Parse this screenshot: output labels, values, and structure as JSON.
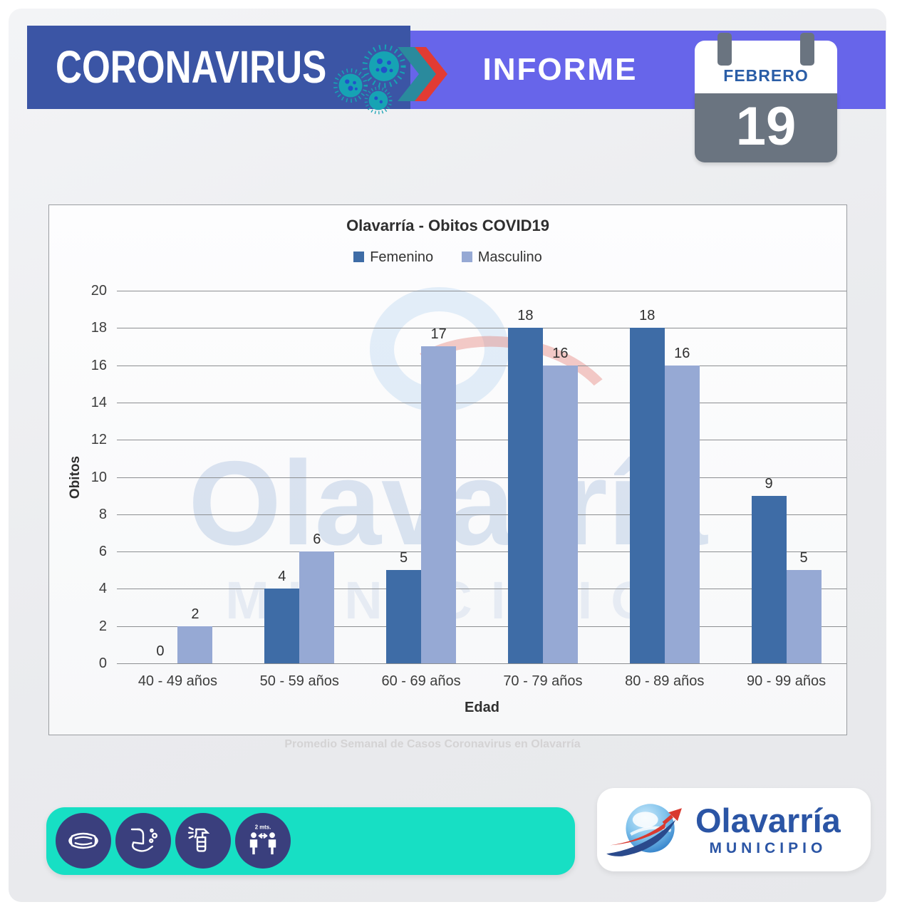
{
  "header": {
    "title": "CORONAVIRUS",
    "report_label": "INFORME",
    "calendar": {
      "month": "FEBRERO",
      "day": "19"
    }
  },
  "chart_data": {
    "type": "bar",
    "title": "Olavarría - Obitos COVID19",
    "categories": [
      "40 - 49 años",
      "50 - 59 años",
      "60 - 69 años",
      "70 - 79 años",
      "80 - 89 años",
      "90 - 99 años"
    ],
    "series": [
      {
        "name": "Femenino",
        "color": "#3E6CA6",
        "values": [
          0,
          4,
          5,
          18,
          18,
          9
        ]
      },
      {
        "name": "Masculino",
        "color": "#96A9D4",
        "values": [
          2,
          6,
          17,
          16,
          16,
          5
        ]
      }
    ],
    "xlabel": "Edad",
    "ylabel": "Obitos",
    "ylim": [
      0,
      20
    ],
    "ytick_step": 2,
    "grid": true,
    "legend_position": "top"
  },
  "watermark": {
    "text": "Olavarría",
    "subtext": "MUNICIPIO"
  },
  "ghost_text": "Promedio Semanal de Casos Coronavirus en Olavarría",
  "footer": {
    "icons": [
      "face-mask",
      "hand-washing",
      "disinfectant-spray",
      "social-distancing"
    ],
    "distance_label": "2 mts.",
    "logo": {
      "name": "Olavarría",
      "subtitle": "MUNICIPIO"
    }
  },
  "colors": {
    "header_dark_band": "#3B55A5",
    "header_purple_band": "#6765EA",
    "calendar_grey": "#6A7480",
    "calendar_month_blue": "#2B5EA7",
    "femenino_bar": "#3E6CA6",
    "masculino_bar": "#96A9D4",
    "footer_teal": "#17DFC4",
    "icon_circle_navy": "#3A3F7D",
    "logo_blue": "#2B55A5",
    "accent_red": "#E23B33",
    "accent_teal": "#2A8A9D"
  }
}
